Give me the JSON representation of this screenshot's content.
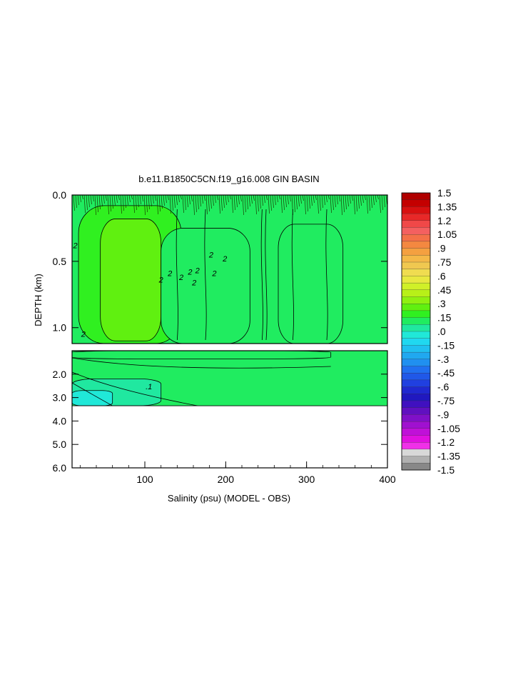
{
  "chart_data": {
    "type": "heatmap",
    "title": "b.e11.B1850C5CN.f19_g16.008 GIN BASIN",
    "xlabel": "Salinity (psu) (MODEL - OBS)",
    "ylabel": "DEPTH (km)",
    "x_range": [
      10,
      400
    ],
    "x_ticks": [
      "100",
      "200",
      "300",
      "400"
    ],
    "panels": [
      {
        "name": "upper",
        "y_range": [
          0.0,
          1.12
        ],
        "y_ticks": [
          "0.0",
          "0.5",
          "1.0"
        ],
        "background_value": 0.1,
        "regions": [
          {
            "value": 0.2,
            "x": [
              18,
              145
            ],
            "y": [
              0.08,
              1.12
            ]
          },
          {
            "value": 0.25,
            "x": [
              45,
              120
            ],
            "y": [
              0.18,
              1.1
            ]
          },
          {
            "value": 0.15,
            "x": [
              120,
              230
            ],
            "y": [
              0.25,
              1.12
            ]
          },
          {
            "value": 0.15,
            "x": [
              265,
              345
            ],
            "y": [
              0.22,
              1.12
            ]
          }
        ],
        "contour_labels": [
          {
            "text": "2",
            "x": 14,
            "y": 0.4
          },
          {
            "text": "2",
            "x": 24,
            "y": 1.07
          },
          {
            "text": "2",
            "x": 120,
            "y": 0.66
          },
          {
            "text": "2",
            "x": 131,
            "y": 0.61
          },
          {
            "text": "2",
            "x": 145,
            "y": 0.64
          },
          {
            "text": "2",
            "x": 156,
            "y": 0.6
          },
          {
            "text": "2",
            "x": 161,
            "y": 0.68
          },
          {
            "text": "2",
            "x": 182,
            "y": 0.47
          },
          {
            "text": "2",
            "x": 186,
            "y": 0.61
          },
          {
            "text": "2",
            "x": 199,
            "y": 0.5
          },
          {
            "text": "2",
            "x": 165,
            "y": 0.59
          }
        ]
      },
      {
        "name": "lower",
        "y_range": [
          1.0,
          6.0
        ],
        "y_ticks": [
          "2.0",
          "3.0",
          "4.0",
          "5.0",
          "6.0"
        ],
        "data_depth_limit": 3.35,
        "background_value": 0.1,
        "regions": [
          {
            "value": 0.15,
            "x": [
              10,
              330
            ],
            "y": [
              1.0,
              1.35
            ]
          },
          {
            "value": 0.05,
            "x": [
              10,
              120
            ],
            "y": [
              2.2,
              3.35
            ]
          },
          {
            "value": 0.0,
            "x": [
              10,
              60
            ],
            "y": [
              2.7,
              3.35
            ]
          }
        ],
        "contour_labels": [
          {
            "text": ".1",
            "x": 105,
            "y": 2.65
          }
        ]
      }
    ],
    "colorbar": {
      "levels": [
        "1.5",
        "1.35",
        "1.2",
        "1.05",
        ".9",
        ".75",
        ".6",
        ".45",
        ".3",
        ".15",
        ".0",
        "-.15",
        "-.3",
        "-.45",
        "-.6",
        "-.75",
        "-.9",
        "-1.05",
        "-1.2",
        "-1.35",
        "-1.5"
      ],
      "colors": [
        "#b00000",
        "#c40000",
        "#d81010",
        "#e82828",
        "#f04848",
        "#f46060",
        "#f47048",
        "#f48840",
        "#f4a040",
        "#f4b848",
        "#f0c850",
        "#f0dc50",
        "#e8e840",
        "#d0f028",
        "#b8f018",
        "#90f010",
        "#60f010",
        "#30f020",
        "#20ec60",
        "#20e8a0",
        "#20e8d8",
        "#20d8f0",
        "#20c0f0",
        "#20a8f0",
        "#2090f0",
        "#2070f0",
        "#2058e8",
        "#2040e0",
        "#2028d0",
        "#2018c0",
        "#4010c0",
        "#6010c0",
        "#8010c8",
        "#a010d0",
        "#c010d8",
        "#e010e0",
        "#f030e8",
        "#d8d8d8",
        "#b0b0b0",
        "#888888"
      ]
    }
  }
}
